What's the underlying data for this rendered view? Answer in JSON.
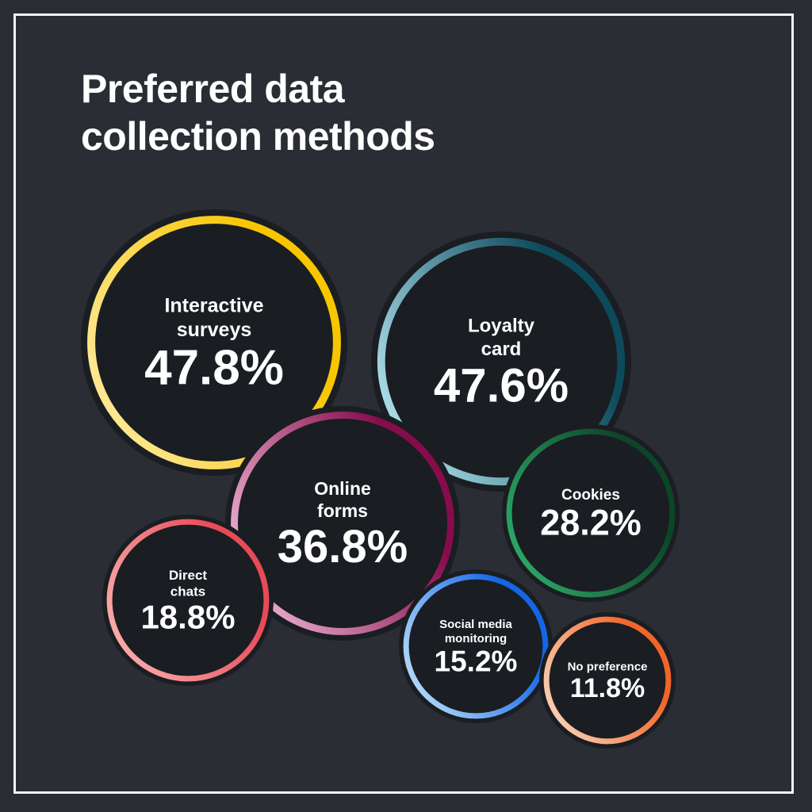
{
  "chart_data": {
    "type": "bubble",
    "title": "Preferred data collection methods",
    "unit": "%",
    "items": [
      {
        "label": "Interactive surveys",
        "lines": [
          "Interactive",
          "surveys"
        ],
        "value": 47.8,
        "display": "47.8%",
        "colors": [
          "#fde793",
          "#f7c600"
        ]
      },
      {
        "label": "Loyalty card",
        "lines": [
          "Loyalty",
          "card"
        ],
        "value": 47.6,
        "display": "47.6%",
        "colors": [
          "#aadde8",
          "#0c4a5c"
        ]
      },
      {
        "label": "Cookies",
        "lines": [
          "Cookies"
        ],
        "value": 28.2,
        "display": "28.2%",
        "colors": [
          "#2ba665",
          "#0c4528"
        ]
      },
      {
        "label": "Online forms",
        "lines": [
          "Online",
          "forms"
        ],
        "value": 36.8,
        "display": "36.8%",
        "colors": [
          "#eab0cf",
          "#860c4c"
        ]
      },
      {
        "label": "Direct chats",
        "lines": [
          "Direct",
          "chats"
        ],
        "value": 18.8,
        "display": "18.8%",
        "colors": [
          "#f8aaa8",
          "#e84a57"
        ]
      },
      {
        "label": "Social media monitoring",
        "lines": [
          "Social media",
          "monitoring"
        ],
        "value": 15.2,
        "display": "15.2%",
        "colors": [
          "#b0d6f8",
          "#1466e6"
        ]
      },
      {
        "label": "No preference",
        "lines": [
          "No preference"
        ],
        "value": 11.8,
        "display": "11.8%",
        "colors": [
          "#f9cdb0",
          "#f26529"
        ]
      }
    ]
  },
  "colors": {
    "background": "#2a2d33",
    "bubble_fill": "#1a1d22",
    "text": "#ffffff"
  }
}
